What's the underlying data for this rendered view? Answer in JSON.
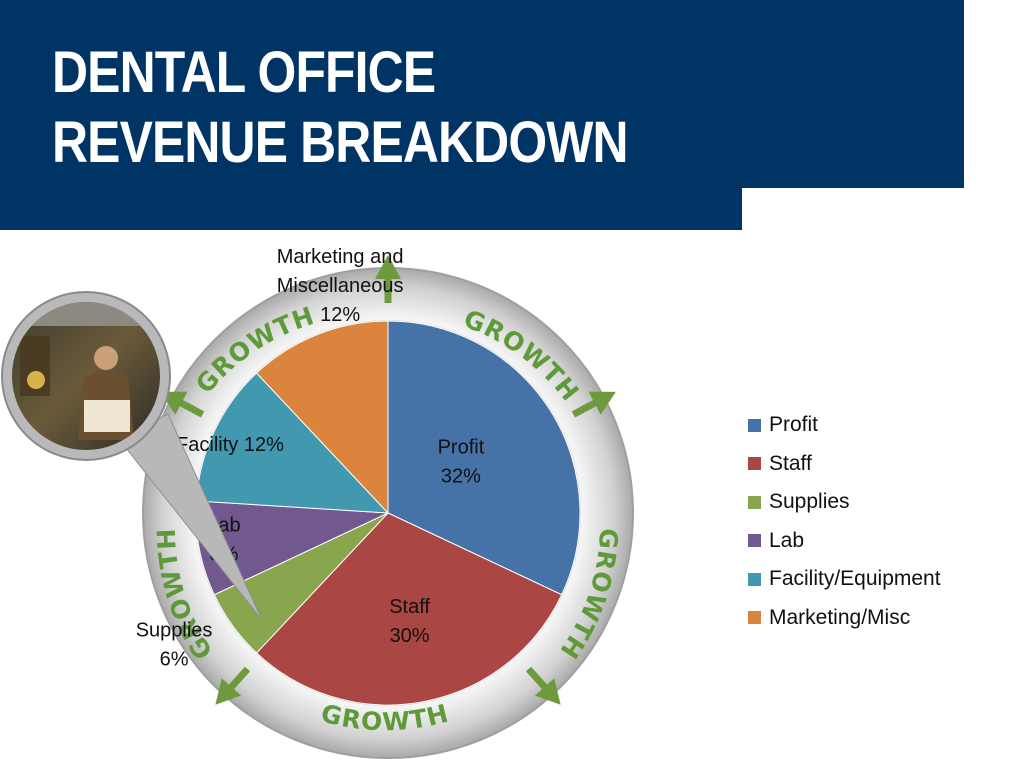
{
  "title": {
    "line1": "DENTAL OFFICE",
    "line2": "REVENUE BREAKDOWN"
  },
  "growth_label": "GROWTH",
  "chart_data": {
    "type": "pie",
    "categories": [
      "Profit",
      "Staff",
      "Supplies",
      "Lab",
      "Facility/Equipment",
      "Marketing/Misc"
    ],
    "values": [
      32,
      30,
      6,
      8,
      12,
      12
    ],
    "colors": [
      "#4572a7",
      "#aa4643",
      "#89a54e",
      "#71588f",
      "#4198af",
      "#db843d"
    ],
    "data_labels": [
      {
        "lines": [
          "Profit",
          "32%"
        ]
      },
      {
        "lines": [
          "Staff",
          "30%"
        ]
      },
      {
        "lines": [
          "Supplies",
          "6%"
        ]
      },
      {
        "lines": [
          "Lab",
          "8%"
        ]
      },
      {
        "lines": [
          "Facility 12%"
        ]
      },
      {
        "lines": [
          "Marketing and",
          "Miscellaneous",
          "12%"
        ]
      }
    ],
    "legend": {
      "position": "right",
      "entries": [
        "Profit",
        "Staff",
        "Supplies",
        "Lab",
        "Facility/Equipment",
        "Marketing/Misc"
      ]
    }
  },
  "decor": {
    "ring_color": "#c9c9c9",
    "arrow_color": "#6d9a3c",
    "growth_color": "#5f9a3a",
    "photo_icon": "person-photo-icon"
  }
}
